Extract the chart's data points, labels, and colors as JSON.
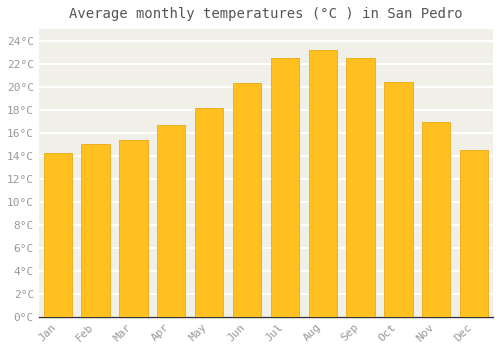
{
  "title": "Average monthly temperatures (°C ) in San Pedro",
  "months": [
    "Jan",
    "Feb",
    "Mar",
    "Apr",
    "May",
    "Jun",
    "Jul",
    "Aug",
    "Sep",
    "Oct",
    "Nov",
    "Dec"
  ],
  "temperatures": [
    14.2,
    15.0,
    15.4,
    16.7,
    18.1,
    20.3,
    22.5,
    23.2,
    22.5,
    20.4,
    16.9,
    14.5
  ],
  "bar_color_main": "#FFC020",
  "bar_color_edge": "#E8A000",
  "ylim": [
    0,
    25
  ],
  "yticks": [
    0,
    2,
    4,
    6,
    8,
    10,
    12,
    14,
    16,
    18,
    20,
    22,
    24
  ],
  "ytick_labels": [
    "0°C",
    "2°C",
    "4°C",
    "6°C",
    "8°C",
    "10°C",
    "12°C",
    "14°C",
    "16°C",
    "18°C",
    "20°C",
    "22°C",
    "24°C"
  ],
  "background_color": "#ffffff",
  "plot_bg_color": "#f0f0e8",
  "grid_color": "#ffffff",
  "title_fontsize": 10,
  "tick_fontsize": 8,
  "tick_color": "#999999",
  "title_color": "#555555",
  "font_family": "monospace",
  "bar_width": 0.75
}
